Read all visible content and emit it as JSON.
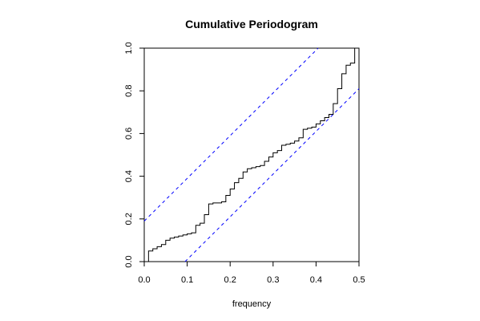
{
  "chart_data": {
    "type": "step",
    "title": "Cumulative Periodogram",
    "x_label": "frequency",
    "xlim": [
      0,
      0.5
    ],
    "ylim": [
      0,
      1
    ],
    "xticks": [
      {
        "value": 0,
        "label": "0.0"
      },
      {
        "value": 0.1,
        "label": "0.1"
      },
      {
        "value": 0.2,
        "label": "0.2"
      },
      {
        "value": 0.3,
        "label": "0.3"
      },
      {
        "value": 0.4,
        "label": "0.4"
      },
      {
        "value": 0.5,
        "label": "0.5"
      }
    ],
    "yticks": [
      {
        "value": 0,
        "label": "0.0"
      },
      {
        "value": 0.2,
        "label": "0.2"
      },
      {
        "value": 0.4,
        "label": "0.4"
      },
      {
        "value": 0.6,
        "label": "0.6"
      },
      {
        "value": 0.8,
        "label": "0.8"
      },
      {
        "value": 1,
        "label": "1.0"
      }
    ],
    "series": [
      {
        "color": "#000000",
        "x": [
          0.01,
          0.02,
          0.03,
          0.04,
          0.05,
          0.06,
          0.07,
          0.08,
          0.09,
          0.1,
          0.11,
          0.12,
          0.13,
          0.14,
          0.15,
          0.16,
          0.17,
          0.18,
          0.19,
          0.2,
          0.21,
          0.22,
          0.23,
          0.24,
          0.25,
          0.26,
          0.27,
          0.28,
          0.29,
          0.3,
          0.31,
          0.32,
          0.33,
          0.34,
          0.35,
          0.36,
          0.37,
          0.38,
          0.39,
          0.4,
          0.41,
          0.42,
          0.43,
          0.44,
          0.45,
          0.46,
          0.47,
          0.48,
          0.49
        ],
        "values": [
          0.05,
          0.06,
          0.07,
          0.08,
          0.1,
          0.11,
          0.115,
          0.12,
          0.125,
          0.13,
          0.135,
          0.17,
          0.18,
          0.22,
          0.27,
          0.275,
          0.275,
          0.28,
          0.31,
          0.34,
          0.37,
          0.39,
          0.42,
          0.435,
          0.44,
          0.445,
          0.45,
          0.47,
          0.49,
          0.51,
          0.52,
          0.545,
          0.55,
          0.555,
          0.565,
          0.58,
          0.62,
          0.625,
          0.63,
          0.645,
          0.66,
          0.675,
          0.69,
          0.74,
          0.81,
          0.88,
          0.92,
          0.93,
          1.0
        ]
      },
      {
        "color": "#0000ff",
        "style": "dashed",
        "x": [
          0,
          0.405
        ],
        "values": [
          0.19,
          1
        ]
      },
      {
        "color": "#0000ff",
        "style": "dashed",
        "x": [
          0.095,
          0.5
        ],
        "values": [
          0,
          0.81
        ]
      }
    ]
  }
}
